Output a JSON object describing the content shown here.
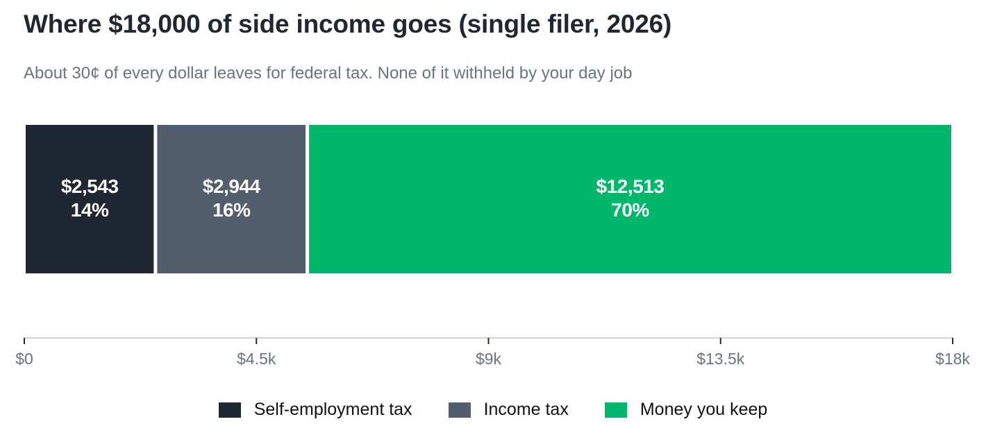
{
  "chart_data": {
    "type": "bar",
    "orientation": "horizontal-stacked",
    "title": "Where $18,000 of side income goes (single filer, 2026)",
    "subtitle": "About 30¢ of every dollar leaves for federal tax. None of it withheld by your day job",
    "total": 18000,
    "xlim": [
      0,
      18000
    ],
    "ticks": [
      {
        "value": 0,
        "label": "$0"
      },
      {
        "value": 4500,
        "label": "$4.5k"
      },
      {
        "value": 9000,
        "label": "$9k"
      },
      {
        "value": 13500,
        "label": "$13.5k"
      },
      {
        "value": 18000,
        "label": "$18k"
      }
    ],
    "series": [
      {
        "name": "Self-employment tax",
        "value": 2543,
        "amount_label": "$2,543",
        "percent_label": "14%",
        "color": "#1f2733"
      },
      {
        "name": "Income tax",
        "value": 2944,
        "amount_label": "$2,944",
        "percent_label": "16%",
        "color": "#525e6b"
      },
      {
        "name": "Money you keep",
        "value": 12513,
        "amount_label": "$12,513",
        "percent_label": "70%",
        "color": "#00b76b"
      }
    ],
    "grid": false,
    "legend_position": "bottom"
  }
}
